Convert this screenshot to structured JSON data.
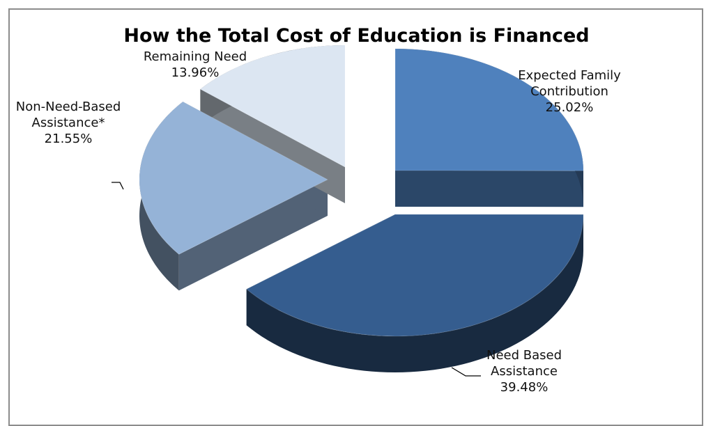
{
  "chart_data": {
    "type": "pie",
    "title": "How the Total Cost of Education is Financed",
    "slices": [
      {
        "name_lines": [
          "Expected Family",
          "Contribution"
        ],
        "value_label": "25.02%",
        "value": 25.02,
        "color": "#4f81bd"
      },
      {
        "name_lines": [
          "Need Based",
          "Assistance"
        ],
        "value_label": "39.48%",
        "value": 39.48,
        "color": "#355d8f"
      },
      {
        "name_lines": [
          "Non-Need-Based",
          "Assistance*"
        ],
        "value_label": "21.55%",
        "value": 21.55,
        "color": "#95b3d7"
      },
      {
        "name_lines": [
          "Remaining Need"
        ],
        "value_label": "13.96%",
        "value": 13.96,
        "color": "#dce6f2"
      }
    ]
  }
}
